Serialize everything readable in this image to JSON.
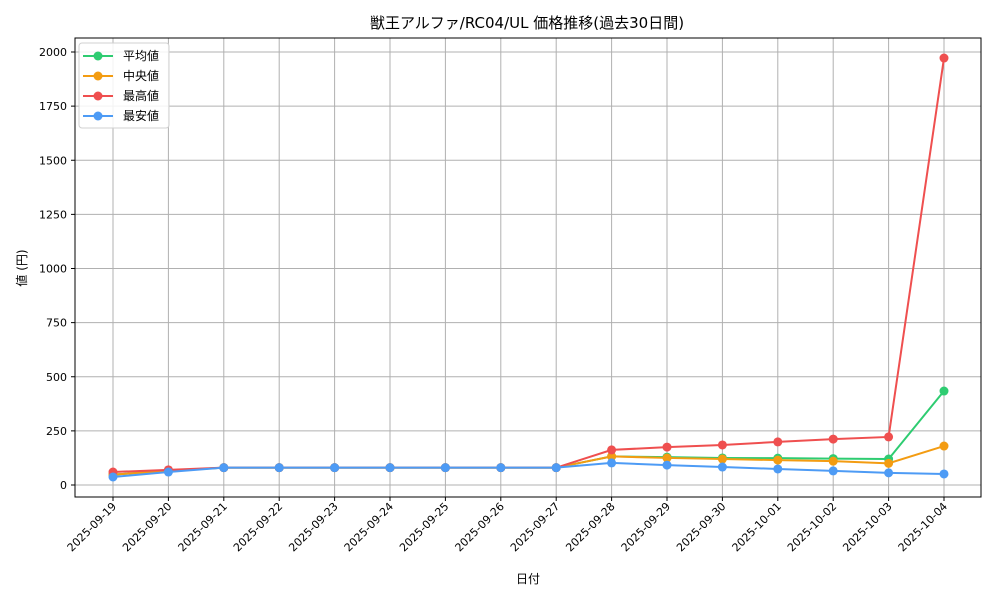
{
  "chart_data": {
    "type": "line",
    "title": "獣王アルファ/RC04/UL 価格推移(過去30日間)",
    "xlabel": "日付",
    "ylabel": "値 (円)",
    "ylim": [
      -55,
      2060
    ],
    "yticks": [
      0,
      250,
      500,
      750,
      1000,
      1250,
      1500,
      1750,
      2000
    ],
    "grid": true,
    "legend_position": "upper left",
    "categories": [
      "2025-09-19",
      "2025-09-20",
      "2025-09-21",
      "2025-09-22",
      "2025-09-23",
      "2025-09-24",
      "2025-09-25",
      "2025-09-26",
      "2025-09-27",
      "2025-09-28",
      "2025-09-29",
      "2025-09-30",
      "2025-10-01",
      "2025-10-02",
      "2025-10-03",
      "2025-10-04"
    ],
    "series": [
      {
        "name": "平均値",
        "color": "#2ecc71",
        "values": [
          48,
          65,
          80,
          80,
          80,
          80,
          80,
          80,
          80,
          132,
          129,
          125,
          124,
          122,
          120,
          434
        ]
      },
      {
        "name": "中央値",
        "color": "#f39c12",
        "values": [
          48,
          65,
          80,
          80,
          80,
          80,
          80,
          80,
          80,
          132,
          125,
          120,
          115,
          110,
          100,
          180
        ]
      },
      {
        "name": "最高値",
        "color": "#ef4f4f",
        "values": [
          60,
          70,
          80,
          80,
          80,
          80,
          80,
          80,
          80,
          162,
          175,
          185,
          199,
          212,
          222,
          1972
        ]
      },
      {
        "name": "最安値",
        "color": "#4d9bf5",
        "values": [
          37,
          60,
          80,
          80,
          80,
          80,
          80,
          80,
          80,
          102,
          92,
          83,
          74,
          65,
          56,
          51
        ]
      }
    ]
  }
}
